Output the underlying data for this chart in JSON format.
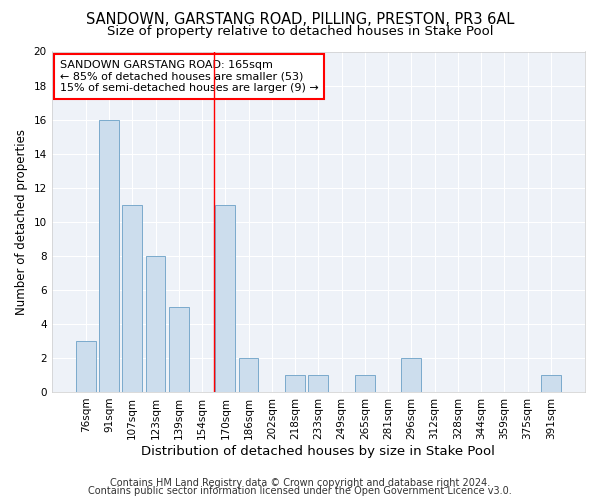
{
  "title": "SANDOWN, GARSTANG ROAD, PILLING, PRESTON, PR3 6AL",
  "subtitle": "Size of property relative to detached houses in Stake Pool",
  "xlabel": "Distribution of detached houses by size in Stake Pool",
  "ylabel": "Number of detached properties",
  "categories": [
    "76sqm",
    "91sqm",
    "107sqm",
    "123sqm",
    "139sqm",
    "154sqm",
    "170sqm",
    "186sqm",
    "202sqm",
    "218sqm",
    "233sqm",
    "249sqm",
    "265sqm",
    "281sqm",
    "296sqm",
    "312sqm",
    "328sqm",
    "344sqm",
    "359sqm",
    "375sqm",
    "391sqm"
  ],
  "values": [
    3,
    16,
    11,
    8,
    5,
    0,
    11,
    2,
    0,
    1,
    1,
    0,
    1,
    0,
    2,
    0,
    0,
    0,
    0,
    0,
    1
  ],
  "bar_color": "#ccdded",
  "bar_edge_color": "#7aaacc",
  "background_color": "#eef2f8",
  "grid_color": "#ffffff",
  "redline_x": 5.5,
  "annotation_title": "SANDOWN GARSTANG ROAD: 165sqm",
  "annotation_line1": "← 85% of detached houses are smaller (53)",
  "annotation_line2": "15% of semi-detached houses are larger (9) →",
  "ylim": [
    0,
    20
  ],
  "yticks": [
    0,
    2,
    4,
    6,
    8,
    10,
    12,
    14,
    16,
    18,
    20
  ],
  "footer1": "Contains HM Land Registry data © Crown copyright and database right 2024.",
  "footer2": "Contains public sector information licensed under the Open Government Licence v3.0.",
  "title_fontsize": 10.5,
  "subtitle_fontsize": 9.5,
  "xlabel_fontsize": 9.5,
  "ylabel_fontsize": 8.5,
  "tick_fontsize": 7.5,
  "annotation_fontsize": 8,
  "footer_fontsize": 7
}
